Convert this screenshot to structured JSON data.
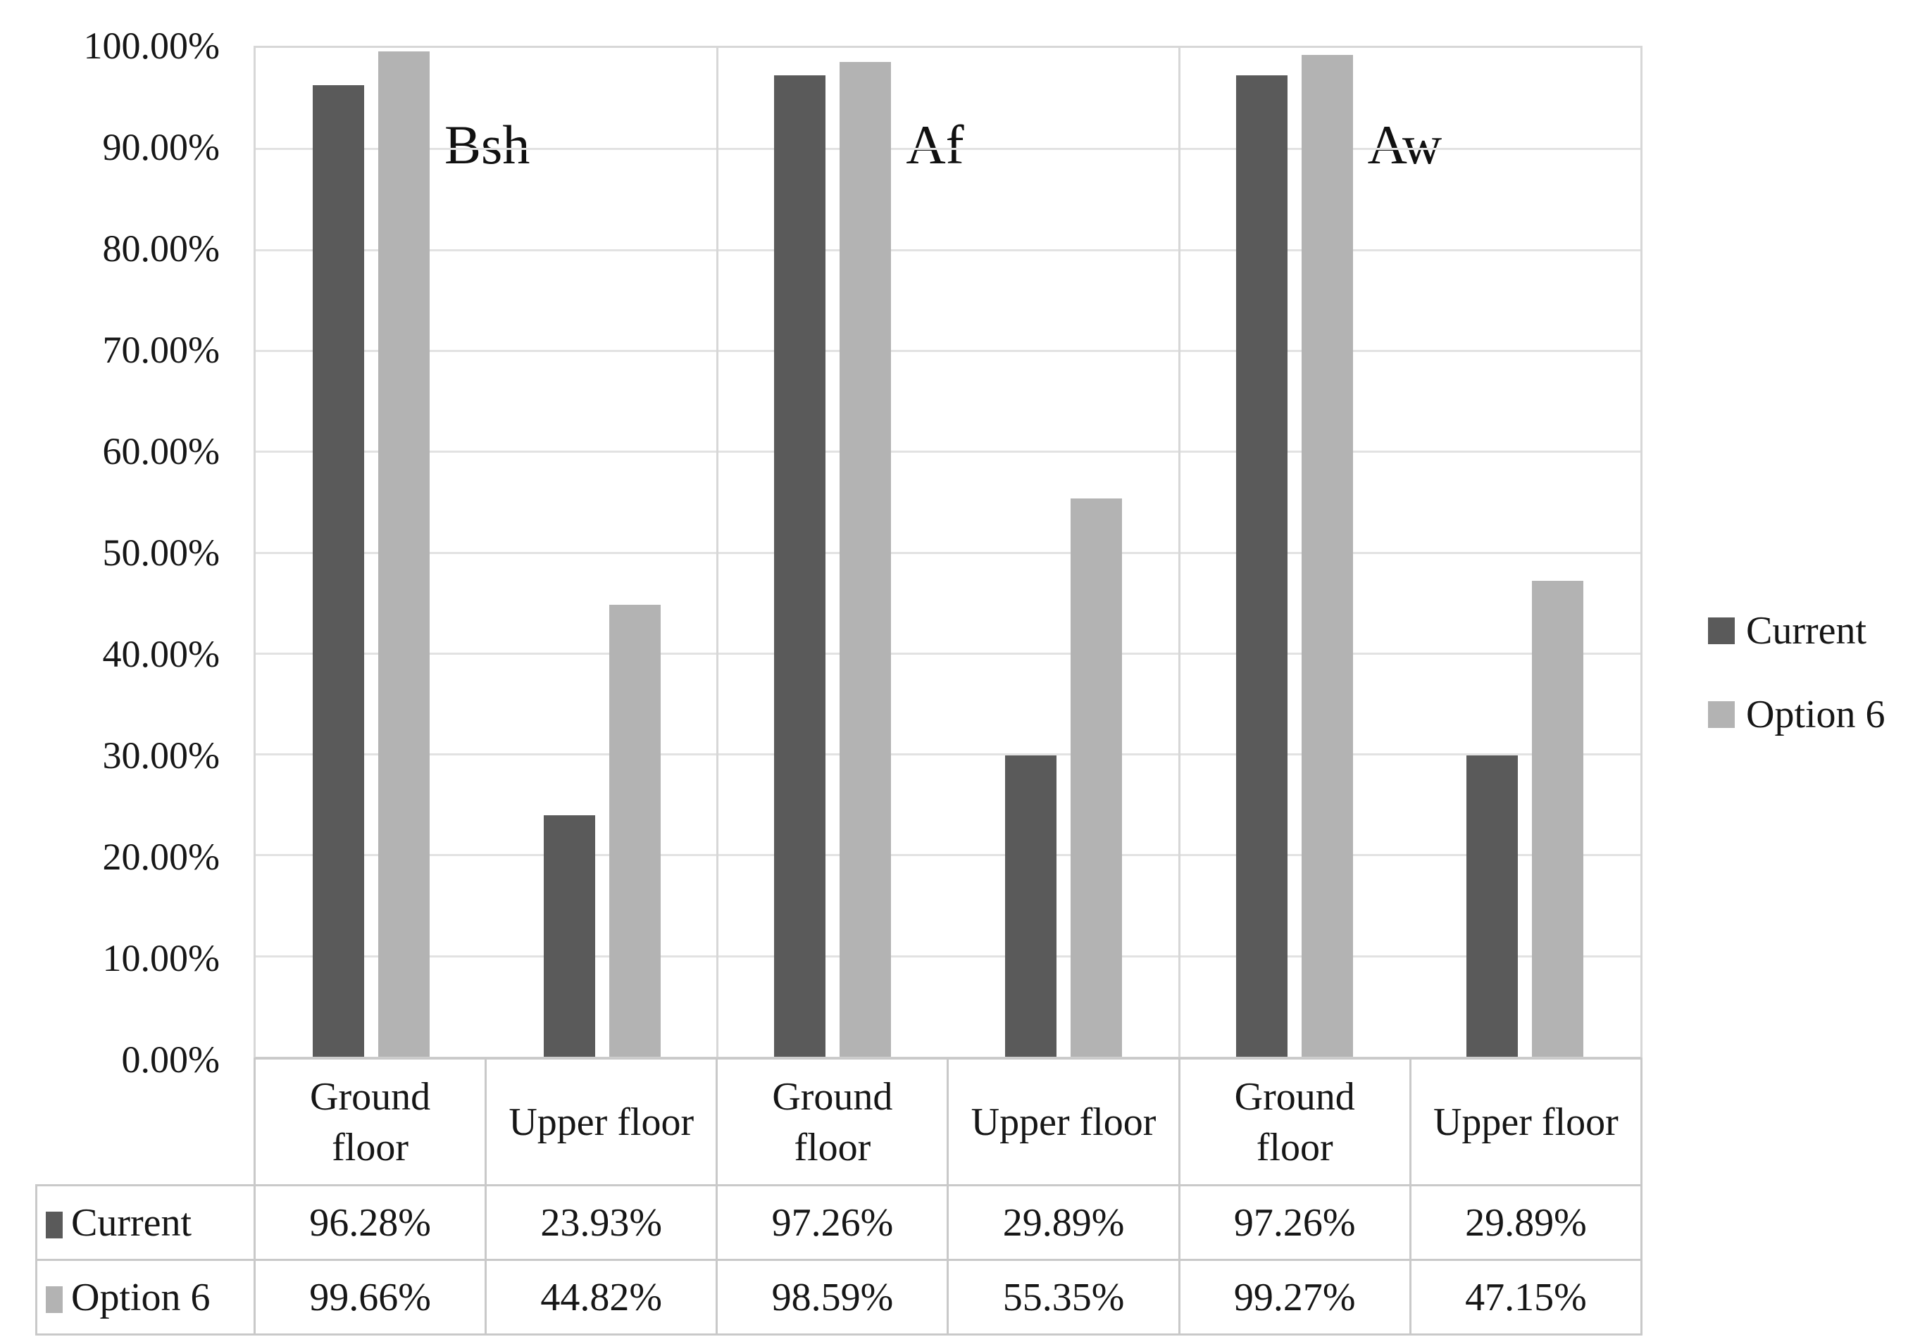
{
  "chart_data": {
    "type": "bar",
    "title": "",
    "group_labels": [
      "Bsh",
      "Af",
      "Aw"
    ],
    "categories": [
      "Ground floor",
      "Upper floor",
      "Ground floor",
      "Upper floor",
      "Ground floor",
      "Upper floor"
    ],
    "series": [
      {
        "name": "Current",
        "color": "#5a5a5a",
        "values": [
          96.28,
          23.93,
          97.26,
          29.89,
          97.26,
          29.89
        ],
        "display": [
          "96.28%",
          "23.93%",
          "97.26%",
          "29.89%",
          "97.26%",
          "29.89%"
        ]
      },
      {
        "name": "Option 6",
        "color": "#b3b3b3",
        "values": [
          99.66,
          44.82,
          98.59,
          55.35,
          99.27,
          47.15
        ],
        "display": [
          "99.66%",
          "44.82%",
          "98.59%",
          "55.35%",
          "99.27%",
          "47.15%"
        ]
      }
    ],
    "y_axis": {
      "min": 0,
      "max": 100,
      "step": 10,
      "tick_labels": [
        "100.00%",
        "90.00%",
        "80.00%",
        "70.00%",
        "60.00%",
        "50.00%",
        "40.00%",
        "30.00%",
        "20.00%",
        "10.00%",
        "0.00%"
      ]
    },
    "ylim": [
      0,
      100
    ],
    "grid": true,
    "legend": {
      "position": "right",
      "entries": [
        "Current",
        "Option 6"
      ]
    }
  },
  "colors": {
    "series_current": "#5a5a5a",
    "series_option_6": "#b3b3b3",
    "gridline": "#e2e2e2",
    "plot_border": "#d7d7d7",
    "table_border": "#c9c9c9",
    "text": "#161616",
    "background": "#ffffff"
  }
}
